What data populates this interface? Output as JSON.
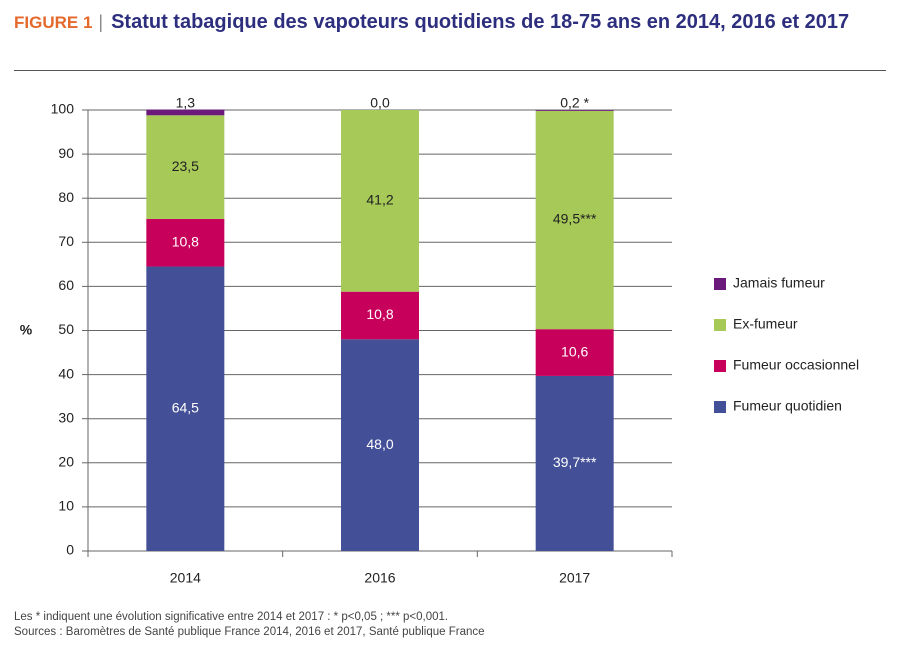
{
  "chart_data": {
    "type": "stacked_bar",
    "figure_label": "FIGURE 1",
    "title": "Statut tabagique des vapoteurs quotidiens de 18-75 ans en 2014, 2016 et 2017",
    "y_label": "%",
    "categories": [
      "2014",
      "2016",
      "2017"
    ],
    "series": [
      {
        "name": "Fumeur quotidien",
        "color": "#434f96",
        "values": [
          64.5,
          48.0,
          39.7
        ],
        "value_labels": [
          "64,5",
          "48,0",
          "39,7***"
        ]
      },
      {
        "name": "Fumeur occasionnel",
        "color": "#c7005b",
        "values": [
          10.8,
          10.8,
          10.6
        ],
        "value_labels": [
          "10,8",
          "10,8",
          "10,6"
        ]
      },
      {
        "name": "Ex-fumeur",
        "color": "#a6c958",
        "values": [
          23.5,
          41.2,
          49.5
        ],
        "value_labels": [
          "23,5",
          "41,2",
          "49,5***"
        ]
      },
      {
        "name": "Jamais fumeur",
        "color": "#6b1a7b",
        "values": [
          1.3,
          0.0,
          0.2
        ],
        "value_labels": [
          "1,3",
          "0,0",
          "0,2 *"
        ]
      }
    ],
    "ylim": [
      0,
      100
    ],
    "yticks": [
      0,
      10,
      20,
      30,
      40,
      50,
      60,
      70,
      80,
      90,
      100
    ],
    "grid": true,
    "legend": "right",
    "notes": [
      "Les * indiquent une évolution significative entre 2014 et 2017 : * p<0,05 ; *** p<0,001.",
      "Sources : Baromètres de Santé publique France 2014, 2016 et 2017, Santé publique France"
    ]
  }
}
